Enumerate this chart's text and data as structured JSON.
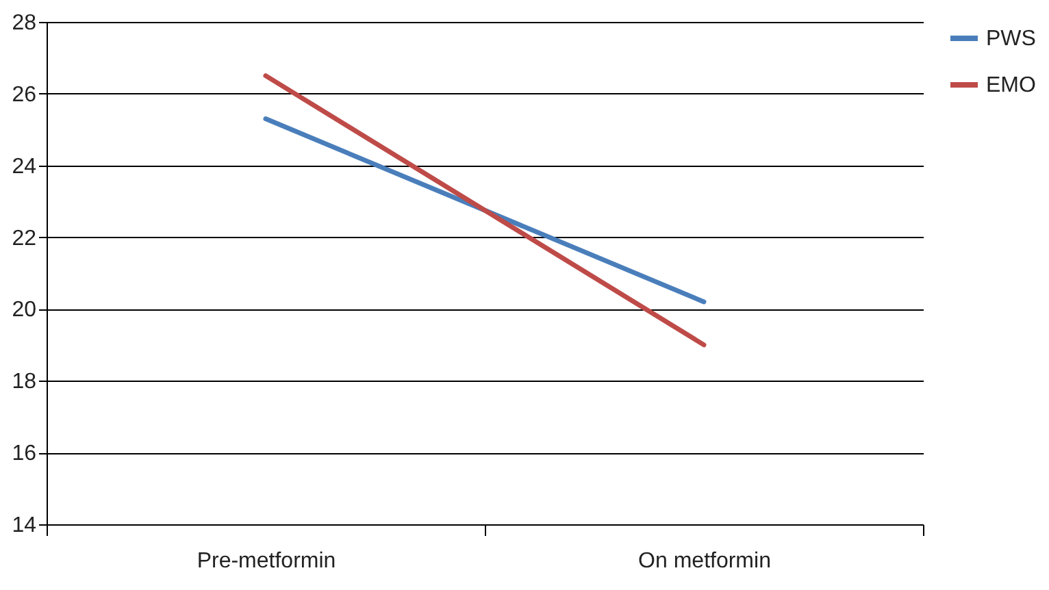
{
  "chart_data": {
    "type": "line",
    "categories": [
      "Pre-metformin",
      "On metformin"
    ],
    "series": [
      {
        "name": "PWS",
        "color": "#4a7ebb",
        "values": [
          25.3,
          20.2
        ]
      },
      {
        "name": "EMO",
        "color": "#be4b48",
        "values": [
          26.5,
          19.0
        ]
      }
    ],
    "ylim": [
      14,
      28
    ],
    "yticks": [
      14,
      16,
      18,
      20,
      22,
      24,
      26,
      28
    ],
    "grid": "y",
    "legend": "right",
    "marker": "none",
    "line_style": "solid"
  }
}
